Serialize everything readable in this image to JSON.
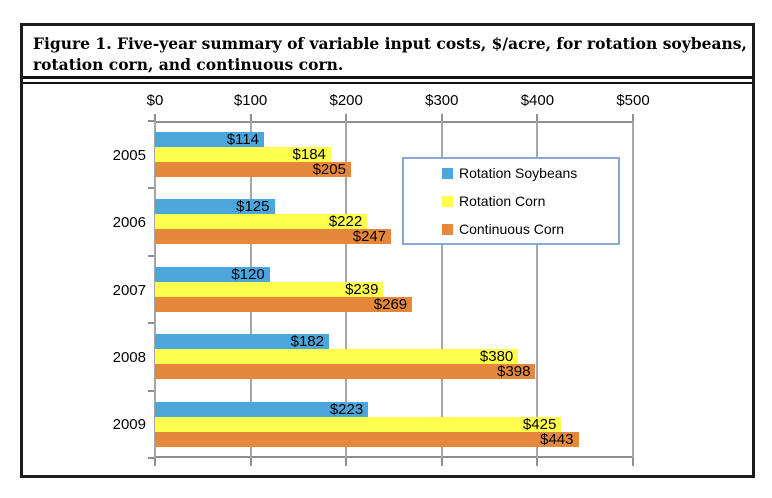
{
  "figure": {
    "title_line1": "Figure 1. Five-year summary of variable input costs, $/acre, for rotation soybeans,",
    "title_line2": "rotation corn, and continuous corn."
  },
  "chart_data": {
    "type": "bar",
    "orientation": "horizontal",
    "title": "Figure 1. Five-year summary of variable input costs, $/acre, for rotation soybeans, rotation corn, and continuous corn.",
    "categories": [
      "2005",
      "2006",
      "2007",
      "2008",
      "2009"
    ],
    "series": [
      {
        "name": "Rotation Soybeans",
        "color": "#4BA6DB",
        "values": [
          114,
          125,
          120,
          182,
          223
        ],
        "labels": [
          "$114",
          "$125",
          "$120",
          "$182",
          "$223"
        ]
      },
      {
        "name": "Rotation Corn",
        "color": "#FFFF4D",
        "values": [
          184,
          222,
          239,
          380,
          425
        ],
        "labels": [
          "$184",
          "$222",
          "$239",
          "$380",
          "$425"
        ]
      },
      {
        "name": "Continuous Corn",
        "color": "#E6883B",
        "values": [
          205,
          247,
          269,
          398,
          443
        ],
        "labels": [
          "$205",
          "$247",
          "$269",
          "$398",
          "$443"
        ]
      }
    ],
    "xlim": [
      0,
      500
    ],
    "x_tick_values": [
      0,
      100,
      200,
      300,
      400,
      500
    ],
    "x_tick_labels": [
      "$0",
      "$100",
      "$200",
      "$300",
      "$400",
      "$500"
    ],
    "grid": true,
    "legend_position": "inside-right",
    "gridline_color": "#A6A6A6",
    "axis_color": "#8F8F8F",
    "legend_border_color": "#87A9D4",
    "frame_color": "#1C1C1C"
  }
}
